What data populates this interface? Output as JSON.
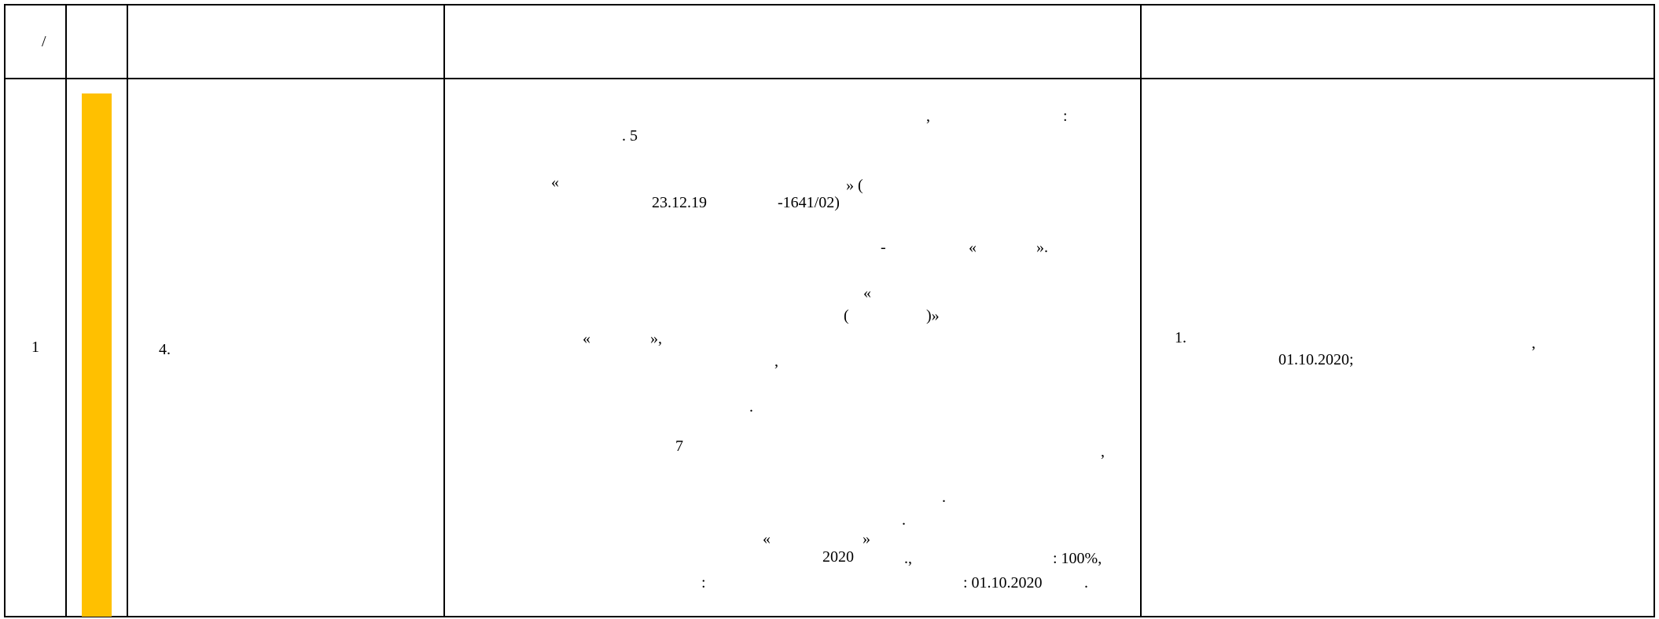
{
  "colors": {
    "status_bar": "#FFC000",
    "grid": "#000000"
  },
  "header": {
    "col1": "/"
  },
  "row": {
    "number": "1",
    "item": "4.",
    "description": {
      "l01": ",",
      "l02": ":",
      "l03": ". 5",
      "l04": "«",
      "l05": "» (",
      "l06": "23.12.19",
      "l07": "-1641/02)",
      "l08": "-",
      "l09": "«",
      "l10": "».",
      "l11": "«",
      "l12": "(",
      "l13": ")»",
      "l14": "«",
      "l15": "»,",
      "l16": ",",
      "l17": ".",
      "l18": "7",
      "l19": ",",
      "l20": ".",
      "l21": ".",
      "l22": "«",
      "l23": "»",
      "l24": "2020",
      "l25": ".,",
      "l26": ": 100%,",
      "l27": ":",
      "l28": ": 01.10.2020",
      "l29": "."
    },
    "result": {
      "r1": "1.",
      "r2": ",",
      "r3": "01.10.2020;"
    }
  }
}
